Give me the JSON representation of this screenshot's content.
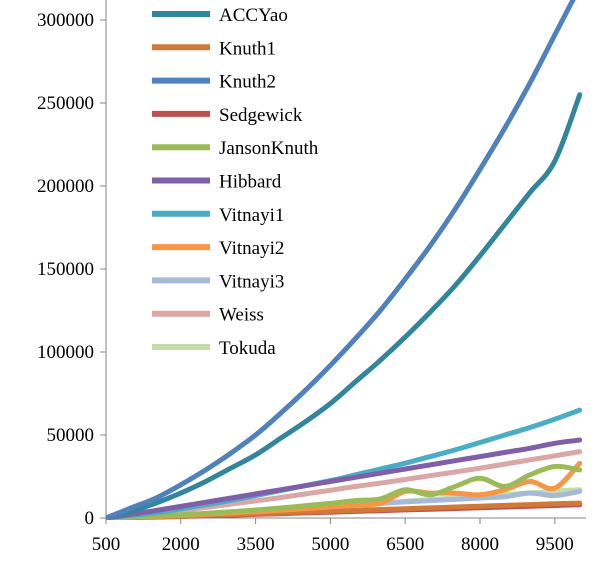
{
  "chart_data": {
    "type": "line",
    "title": "",
    "xlabel": "",
    "ylabel": "",
    "xlim": [
      500,
      10000
    ],
    "ylim": [
      0,
      310000
    ],
    "x_ticks": [
      "500",
      "2000",
      "3500",
      "5000",
      "6500",
      "8000",
      "9500"
    ],
    "y_ticks": [
      "0",
      "50000",
      "100000",
      "150000",
      "200000",
      "250000",
      "300000"
    ],
    "grid": false,
    "legend_position": "top-left",
    "x": [
      500,
      1000,
      1500,
      2000,
      2500,
      3000,
      3500,
      4000,
      4500,
      5000,
      5500,
      6000,
      6500,
      7000,
      7500,
      8000,
      8500,
      9000,
      9500,
      10000
    ],
    "series": [
      {
        "name": "ACCYao",
        "color": "#31859c",
        "values": [
          0,
          4000,
          9000,
          15000,
          22000,
          30000,
          38000,
          48000,
          58000,
          69000,
          82000,
          95000,
          109000,
          124000,
          140000,
          158000,
          177000,
          196000,
          215000,
          255000
        ]
      },
      {
        "name": "Knuth1",
        "color": "#d07a3a",
        "values": [
          0,
          300,
          700,
          1100,
          1600,
          2100,
          2600,
          3100,
          3600,
          4100,
          4600,
          5100,
          5600,
          6100,
          6600,
          7100,
          7600,
          8100,
          8600,
          9000
        ]
      },
      {
        "name": "Knuth2",
        "color": "#4f81bd",
        "values": [
          0,
          6000,
          12000,
          20000,
          29000,
          39000,
          50000,
          63000,
          77000,
          92000,
          108000,
          125000,
          144000,
          164000,
          186000,
          210000,
          235000,
          262000,
          291000,
          320000
        ]
      },
      {
        "name": "Sedgewick",
        "color": "#c0504d",
        "values": [
          0,
          250,
          550,
          900,
          1300,
          1700,
          2150,
          2600,
          3050,
          3500,
          3950,
          4400,
          4850,
          5300,
          5750,
          6200,
          6650,
          7100,
          7550,
          8000
        ]
      },
      {
        "name": "JansonKnuth",
        "color": "#9bbb59",
        "values": [
          0,
          500,
          1200,
          2000,
          2800,
          3800,
          4800,
          6000,
          7400,
          8800,
          10500,
          11500,
          17000,
          14000,
          19000,
          24000,
          19000,
          26000,
          31000,
          29000
        ]
      },
      {
        "name": "Hibbard",
        "color": "#7f5fa7",
        "values": [
          0,
          2200,
          4500,
          7000,
          9500,
          12000,
          14500,
          17000,
          19500,
          22000,
          24500,
          27000,
          29500,
          32000,
          34500,
          37000,
          39500,
          42000,
          45000,
          47000
        ]
      },
      {
        "name": "Vitnayi1",
        "color": "#4bacc6",
        "values": [
          0,
          1500,
          3200,
          5500,
          8000,
          10500,
          13500,
          16500,
          19500,
          22500,
          26000,
          29500,
          33000,
          37000,
          41000,
          45500,
          50000,
          54500,
          59500,
          65000
        ]
      },
      {
        "name": "Vitnayi2",
        "color": "#f79646",
        "values": [
          0,
          400,
          900,
          1500,
          2200,
          3000,
          3800,
          4700,
          5600,
          6600,
          7600,
          8800,
          16000,
          15000,
          15000,
          14000,
          17000,
          22000,
          18000,
          33000
        ]
      },
      {
        "name": "Vitnayi3",
        "color": "#a7b9d9",
        "values": [
          0,
          400,
          900,
          1500,
          2200,
          3000,
          3900,
          4900,
          5900,
          6900,
          7900,
          8800,
          9700,
          10500,
          11200,
          12000,
          12800,
          15000,
          13500,
          16000
        ]
      },
      {
        "name": "Weiss",
        "color": "#d9a8a6",
        "values": [
          0,
          1200,
          2700,
          4500,
          6300,
          8300,
          10300,
          12300,
          14500,
          16700,
          19000,
          21000,
          23200,
          25500,
          27700,
          30000,
          32500,
          35000,
          37500,
          40000
        ]
      },
      {
        "name": "Tokuda",
        "color": "#c5dba8",
        "values": [
          0,
          500,
          1100,
          1800,
          2600,
          3400,
          4300,
          5200,
          6100,
          7100,
          8100,
          9100,
          10100,
          11100,
          12100,
          13100,
          14100,
          15100,
          16100,
          17000
        ]
      }
    ]
  }
}
